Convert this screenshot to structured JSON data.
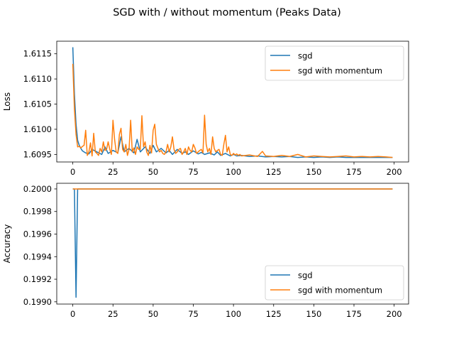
{
  "figure": {
    "title": "SGD with / without momentum (Peaks Data)"
  },
  "colors": {
    "sgd": "#1f77b4",
    "momentum": "#ff7f0e",
    "axes": "#000000",
    "legend_edge": "#cccccc"
  },
  "chart_data": [
    {
      "type": "line",
      "ylabel": "Loss",
      "xlabel": "",
      "xlim": [
        -10,
        209
      ],
      "ylim": [
        1.60935,
        1.61175
      ],
      "xticks": [
        0,
        25,
        50,
        75,
        100,
        125,
        150,
        175,
        200
      ],
      "yticks": [
        1.6095,
        1.61,
        1.6105,
        1.611,
        1.6115
      ],
      "ytick_labels": [
        "1.6095",
        "1.6100",
        "1.6105",
        "1.6110",
        "1.6115"
      ],
      "legend": {
        "placement": "upper right",
        "entries": [
          "sgd",
          "sgd with momentum"
        ]
      },
      "series": [
        {
          "name": "sgd",
          "x": [
            0,
            1,
            2,
            3,
            4,
            5,
            6,
            7,
            8,
            9,
            10,
            12,
            15,
            18,
            20,
            22,
            25,
            28,
            30,
            32,
            35,
            38,
            40,
            42,
            45,
            48,
            50,
            52,
            55,
            58,
            60,
            62,
            65,
            68,
            70,
            72,
            75,
            78,
            80,
            82,
            85,
            88,
            90,
            92,
            95,
            98,
            100,
            102,
            105,
            110,
            115,
            120,
            125,
            130,
            135,
            140,
            145,
            150,
            155,
            160,
            165,
            170,
            175,
            180,
            185,
            190,
            195,
            199
          ],
          "y": [
            1.61163,
            1.6107,
            1.6101,
            1.60978,
            1.60968,
            1.60962,
            1.60957,
            1.60955,
            1.60953,
            1.60952,
            1.60951,
            1.6096,
            1.60955,
            1.6095,
            1.60965,
            1.60952,
            1.60958,
            1.60953,
            1.60985,
            1.60955,
            1.60962,
            1.60953,
            1.6098,
            1.60955,
            1.60965,
            1.60952,
            1.60968,
            1.60955,
            1.60962,
            1.60953,
            1.60958,
            1.6095,
            1.6096,
            1.60952,
            1.60955,
            1.6095,
            1.60957,
            1.60951,
            1.60954,
            1.6095,
            1.60953,
            1.60949,
            1.60955,
            1.60948,
            1.60952,
            1.60947,
            1.6095,
            1.60947,
            1.60948,
            1.60946,
            1.60947,
            1.60945,
            1.60946,
            1.60945,
            1.60946,
            1.60944,
            1.60945,
            1.60944,
            1.60945,
            1.60944,
            1.60945,
            1.60944,
            1.60944,
            1.60944,
            1.60944,
            1.60944,
            1.60944,
            1.60944
          ]
        },
        {
          "name": "sgd with momentum",
          "x": [
            0,
            1,
            2,
            3,
            4,
            5,
            6,
            7,
            8,
            9,
            10,
            11,
            12,
            13,
            14,
            15,
            16,
            17,
            18,
            19,
            20,
            21,
            22,
            23,
            24,
            25,
            26,
            27,
            28,
            29,
            30,
            31,
            32,
            33,
            34,
            35,
            36,
            37,
            38,
            39,
            40,
            41,
            42,
            43,
            44,
            45,
            46,
            47,
            48,
            49,
            50,
            51,
            52,
            53,
            54,
            55,
            56,
            57,
            58,
            59,
            60,
            61,
            62,
            63,
            64,
            65,
            66,
            67,
            68,
            69,
            70,
            71,
            72,
            73,
            74,
            75,
            76,
            77,
            78,
            79,
            80,
            81,
            82,
            83,
            84,
            85,
            86,
            87,
            88,
            89,
            90,
            91,
            92,
            93,
            94,
            95,
            96,
            97,
            98,
            99,
            100,
            101,
            102,
            103,
            104,
            105,
            110,
            115,
            118,
            120,
            125,
            130,
            135,
            140,
            145,
            150,
            155,
            160,
            165,
            170,
            175,
            180,
            185,
            190,
            195,
            199
          ],
          "y": [
            1.6113,
            1.6104,
            1.6099,
            1.60965,
            1.60966,
            1.60963,
            1.60966,
            1.60968,
            1.60998,
            1.60948,
            1.60955,
            1.60973,
            1.60947,
            1.60992,
            1.60955,
            1.60952,
            1.60948,
            1.60962,
            1.60955,
            1.60975,
            1.60958,
            1.6096,
            1.60975,
            1.6096,
            1.6095,
            1.61018,
            1.6098,
            1.60955,
            1.60952,
            1.6099,
            1.61002,
            1.6096,
            1.60955,
            1.6097,
            1.60948,
            1.6096,
            1.61018,
            1.60955,
            1.60963,
            1.6095,
            1.60965,
            1.6096,
            1.6096,
            1.61027,
            1.60965,
            1.60975,
            1.60955,
            1.60948,
            1.60968,
            1.60953,
            1.60998,
            1.6101,
            1.6097,
            1.60962,
            1.60955,
            1.60958,
            1.60952,
            1.6095,
            1.60955,
            1.6097,
            1.60955,
            1.60965,
            1.60985,
            1.6096,
            1.60952,
            1.60955,
            1.6096,
            1.60962,
            1.6095,
            1.60955,
            1.60962,
            1.6095,
            1.60965,
            1.60958,
            1.60955,
            1.6097,
            1.60963,
            1.60952,
            1.60955,
            1.60958,
            1.6096,
            1.60953,
            1.61028,
            1.6097,
            1.60955,
            1.60962,
            1.6095,
            1.60985,
            1.60962,
            1.60955,
            1.60958,
            1.6096,
            1.6095,
            1.60948,
            1.6097,
            1.60988,
            1.60955,
            1.60965,
            1.6095,
            1.60948,
            1.60952,
            1.60949,
            1.60951,
            1.60948,
            1.6095,
            1.60947,
            1.60949,
            1.60946,
            1.60956,
            1.60947,
            1.60946,
            1.60948,
            1.60946,
            1.6095,
            1.60945,
            1.60947,
            1.60946,
            1.60945,
            1.60946,
            1.60947,
            1.60945,
            1.60946,
            1.60945,
            1.60946,
            1.60945,
            1.60944
          ]
        }
      ]
    },
    {
      "type": "line",
      "ylabel": "Accuracy",
      "xlabel": "",
      "xlim": [
        -10,
        209
      ],
      "ylim": [
        0.19898,
        0.20005
      ],
      "xticks": [
        0,
        25,
        50,
        75,
        100,
        125,
        150,
        175,
        200
      ],
      "yticks": [
        0.199,
        0.1992,
        0.1994,
        0.1996,
        0.1998,
        0.2
      ],
      "ytick_labels": [
        "0.1990",
        "0.1992",
        "0.1994",
        "0.1996",
        "0.1998",
        "0.2000"
      ],
      "legend": {
        "placement": "lower right",
        "entries": [
          "sgd",
          "sgd with momentum"
        ]
      },
      "series": [
        {
          "name": "sgd",
          "x": [
            0,
            1,
            2,
            3,
            4,
            199
          ],
          "y": [
            0.2,
            0.2,
            0.19904,
            0.2,
            0.2,
            0.2
          ]
        },
        {
          "name": "sgd with momentum",
          "x": [
            0,
            199
          ],
          "y": [
            0.2,
            0.2
          ]
        }
      ]
    }
  ]
}
